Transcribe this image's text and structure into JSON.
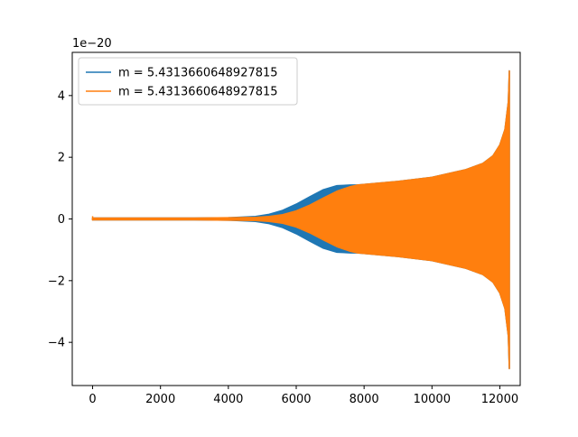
{
  "chart_data": {
    "type": "line",
    "title": "",
    "xlabel": "",
    "ylabel": "",
    "y_offset_label": "1e−20",
    "xlim": [
      -600,
      12600
    ],
    "ylim": [
      -5.4,
      5.4
    ],
    "xticks": [
      0,
      2000,
      4000,
      6000,
      8000,
      10000,
      12000
    ],
    "xtick_labels": [
      "0",
      "2000",
      "4000",
      "6000",
      "8000",
      "10000",
      "12000"
    ],
    "yticks": [
      -4,
      -2,
      0,
      2,
      4
    ],
    "ytick_labels": [
      "−4",
      "−2",
      "0",
      "2",
      "4"
    ],
    "grid": false,
    "legend_position": "upper-left",
    "series": [
      {
        "name": "m = 5.4313660648927815",
        "color": "#1f77b4",
        "envelope": {
          "x": [
            0,
            1000,
            2000,
            3000,
            4000,
            4800,
            5200,
            5600,
            6000,
            6400,
            6800,
            7200,
            7600,
            7800,
            8000,
            9000,
            10000,
            11000,
            11500,
            11800,
            12000,
            12150,
            12250,
            12280
          ],
          "upper": [
            0.03,
            0.03,
            0.03,
            0.03,
            0.04,
            0.08,
            0.15,
            0.28,
            0.48,
            0.72,
            0.95,
            1.08,
            1.1,
            1.1,
            1.12,
            1.22,
            1.35,
            1.6,
            1.8,
            2.05,
            2.4,
            2.9,
            3.8,
            4.8
          ],
          "lower": [
            -0.03,
            -0.03,
            -0.03,
            -0.03,
            -0.04,
            -0.08,
            -0.15,
            -0.28,
            -0.48,
            -0.72,
            -0.95,
            -1.08,
            -1.1,
            -1.1,
            -1.12,
            -1.22,
            -1.35,
            -1.6,
            -1.8,
            -2.05,
            -2.4,
            -2.9,
            -3.8,
            -4.85
          ]
        }
      },
      {
        "name": "m = 5.4313660648927815",
        "color": "#ff7f0e",
        "envelope": {
          "x": [
            0,
            1000,
            2000,
            3000,
            4000,
            4800,
            5200,
            5600,
            6000,
            6400,
            6800,
            7200,
            7600,
            7800,
            8000,
            9000,
            10000,
            11000,
            11500,
            11800,
            12000,
            12150,
            12250,
            12280
          ],
          "upper": [
            0.03,
            0.03,
            0.03,
            0.03,
            0.04,
            0.05,
            0.08,
            0.14,
            0.26,
            0.45,
            0.68,
            0.9,
            1.05,
            1.1,
            1.12,
            1.22,
            1.35,
            1.6,
            1.8,
            2.05,
            2.4,
            2.9,
            3.8,
            4.8
          ],
          "lower": [
            -0.03,
            -0.03,
            -0.03,
            -0.03,
            -0.04,
            -0.05,
            -0.08,
            -0.14,
            -0.26,
            -0.45,
            -0.68,
            -0.9,
            -1.05,
            -1.1,
            -1.12,
            -1.22,
            -1.35,
            -1.6,
            -1.8,
            -2.05,
            -2.4,
            -2.9,
            -3.8,
            -4.85
          ]
        }
      }
    ]
  }
}
